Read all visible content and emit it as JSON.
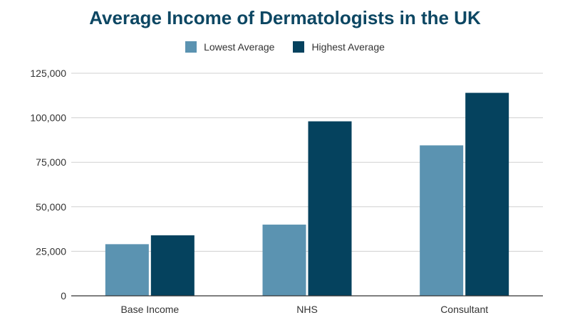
{
  "chart_data": {
    "type": "bar",
    "title": "Average Income of Dermatologists in the UK",
    "xlabel": "",
    "ylabel": "",
    "categories": [
      "Base Income",
      "NHS",
      "Consultant"
    ],
    "series": [
      {
        "name": "Lowest Average",
        "values": [
          29000,
          40000,
          84500
        ],
        "color": "#5b93b1"
      },
      {
        "name": "Highest Average",
        "values": [
          34000,
          98000,
          114000
        ],
        "color": "#05425e"
      }
    ],
    "ylim": [
      0,
      125000
    ],
    "yticks": [
      "0",
      "25,000",
      "50,000",
      "75,000",
      "100,000",
      "125,000"
    ],
    "ytick_values": [
      0,
      25000,
      50000,
      75000,
      100000,
      125000
    ],
    "grid": true,
    "legend": "top-center"
  }
}
